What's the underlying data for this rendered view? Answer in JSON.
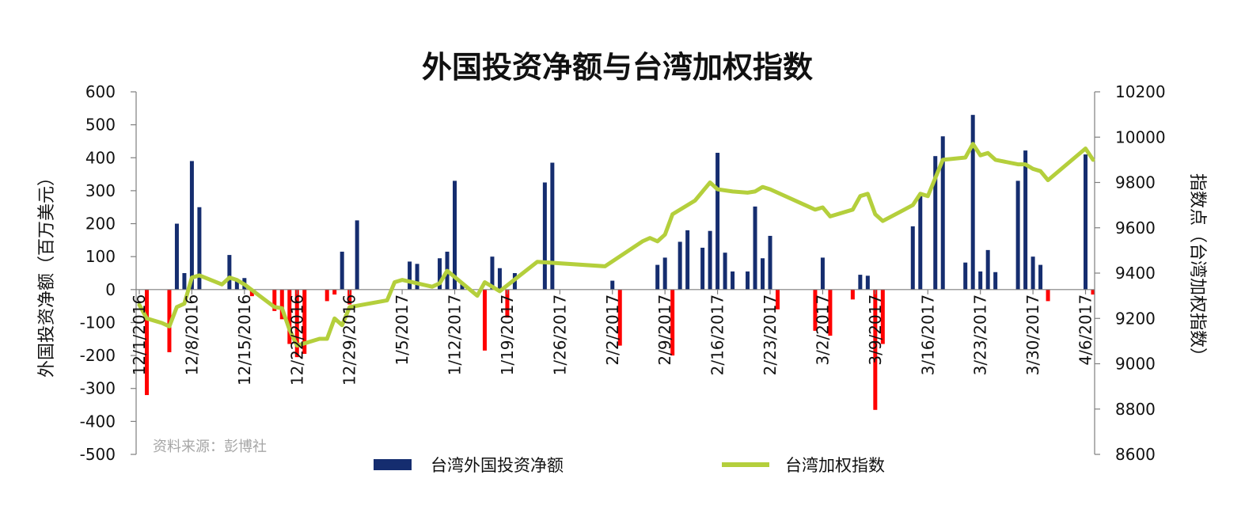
{
  "chart_data": {
    "type": "bar+line",
    "title": "外国投资净额与台湾加权指数",
    "source_note": "资料来源：彭博社",
    "ylabel_left": "外国投资净额（百万美元）",
    "ylabel_right": "指数点（台湾加权指数）",
    "ylim_left": [
      -500,
      600
    ],
    "ylim_right": [
      8600,
      10200
    ],
    "yticks_left": [
      600,
      500,
      400,
      300,
      200,
      100,
      0,
      -100,
      -200,
      -300,
      -400,
      -500
    ],
    "yticks_right": [
      10200,
      10000,
      9800,
      9600,
      9400,
      9200,
      9000,
      8800,
      8600
    ],
    "x_range_days": [
      0,
      127
    ],
    "x_tick_days": [
      0,
      7,
      14,
      21,
      28,
      35,
      42,
      49,
      56,
      63,
      70,
      77,
      84,
      91,
      98,
      105,
      112,
      119,
      126
    ],
    "x_tick_labels": [
      "12/1/2016",
      "12/8/2016",
      "12/15/2016",
      "12/22/2016",
      "12/29/2016",
      "1/5/2017",
      "1/12/2017",
      "1/19/2017",
      "1/26/2017",
      "2/2/2017",
      "2/9/2017",
      "2/16/2017",
      "2/23/2017",
      "3/2/2017",
      "3/9/2017",
      "3/16/2017",
      "3/23/2017",
      "3/30/2017",
      "4/6/2017"
    ],
    "colors": {
      "positive_bar": "#152d6f",
      "negative_bar": "#ff0000",
      "line": "#b4cf3c"
    },
    "series": [
      {
        "name": "台湾外国投资净额",
        "axis": "left",
        "kind": "bar",
        "points": [
          [
            1,
            -320
          ],
          [
            4,
            -190
          ],
          [
            5,
            200
          ],
          [
            6,
            50
          ],
          [
            7,
            390
          ],
          [
            8,
            250
          ],
          [
            12,
            105
          ],
          [
            13,
            30
          ],
          [
            14,
            35
          ],
          [
            15,
            -20
          ],
          [
            18,
            -65
          ],
          [
            19,
            -90
          ],
          [
            20,
            -165
          ],
          [
            21,
            -205
          ],
          [
            22,
            -195
          ],
          [
            25,
            -35
          ],
          [
            26,
            -15
          ],
          [
            27,
            115
          ],
          [
            28,
            -45
          ],
          [
            29,
            210
          ],
          [
            36,
            85
          ],
          [
            37,
            78
          ],
          [
            40,
            95
          ],
          [
            41,
            115
          ],
          [
            42,
            330
          ],
          [
            43,
            18
          ],
          [
            46,
            -185
          ],
          [
            47,
            100
          ],
          [
            48,
            65
          ],
          [
            49,
            -85
          ],
          [
            50,
            50
          ],
          [
            54,
            325
          ],
          [
            55,
            385
          ],
          [
            63,
            27
          ],
          [
            64,
            -170
          ],
          [
            69,
            75
          ],
          [
            70,
            97
          ],
          [
            71,
            -200
          ],
          [
            72,
            145
          ],
          [
            73,
            180
          ],
          [
            75,
            127
          ],
          [
            76,
            178
          ],
          [
            77,
            415
          ],
          [
            78,
            112
          ],
          [
            79,
            55
          ],
          [
            81,
            55
          ],
          [
            82,
            252
          ],
          [
            83,
            95
          ],
          [
            84,
            163
          ],
          [
            85,
            -60
          ],
          [
            90,
            -125
          ],
          [
            91,
            97
          ],
          [
            92,
            -140
          ],
          [
            95,
            -30
          ],
          [
            96,
            45
          ],
          [
            97,
            42
          ],
          [
            98,
            -365
          ],
          [
            99,
            -165
          ],
          [
            103,
            192
          ],
          [
            104,
            290
          ],
          [
            106,
            405
          ],
          [
            107,
            465
          ],
          [
            110,
            82
          ],
          [
            111,
            530
          ],
          [
            112,
            55
          ],
          [
            113,
            120
          ],
          [
            114,
            53
          ],
          [
            117,
            330
          ],
          [
            118,
            422
          ],
          [
            119,
            100
          ],
          [
            120,
            75
          ],
          [
            121,
            -35
          ],
          [
            126,
            410
          ],
          [
            127,
            -15
          ]
        ]
      },
      {
        "name": "台湾加权指数",
        "axis": "right",
        "kind": "line",
        "points": [
          [
            0,
            9260
          ],
          [
            1,
            9200
          ],
          [
            3,
            9180
          ],
          [
            4,
            9165
          ],
          [
            5,
            9250
          ],
          [
            6,
            9265
          ],
          [
            7,
            9380
          ],
          [
            8,
            9390
          ],
          [
            11,
            9350
          ],
          [
            12,
            9380
          ],
          [
            13,
            9370
          ],
          [
            14,
            9350
          ],
          [
            18,
            9250
          ],
          [
            19,
            9245
          ],
          [
            20,
            9150
          ],
          [
            21,
            9080
          ],
          [
            24,
            9110
          ],
          [
            25,
            9110
          ],
          [
            26,
            9200
          ],
          [
            27,
            9170
          ],
          [
            28,
            9250
          ],
          [
            33,
            9280
          ],
          [
            34,
            9360
          ],
          [
            35,
            9370
          ],
          [
            39,
            9340
          ],
          [
            40,
            9355
          ],
          [
            41,
            9410
          ],
          [
            45,
            9300
          ],
          [
            46,
            9360
          ],
          [
            48,
            9320
          ],
          [
            53,
            9450
          ],
          [
            62,
            9430
          ],
          [
            67,
            9540
          ],
          [
            68,
            9555
          ],
          [
            69,
            9540
          ],
          [
            70,
            9570
          ],
          [
            71,
            9660
          ],
          [
            74,
            9720
          ],
          [
            76,
            9800
          ],
          [
            77,
            9770
          ],
          [
            79,
            9760
          ],
          [
            81,
            9755
          ],
          [
            82,
            9760
          ],
          [
            83,
            9780
          ],
          [
            84,
            9770
          ],
          [
            90,
            9680
          ],
          [
            91,
            9690
          ],
          [
            92,
            9650
          ],
          [
            95,
            9680
          ],
          [
            96,
            9740
          ],
          [
            97,
            9750
          ],
          [
            98,
            9660
          ],
          [
            99,
            9630
          ],
          [
            103,
            9700
          ],
          [
            104,
            9750
          ],
          [
            105,
            9740
          ],
          [
            107,
            9900
          ],
          [
            110,
            9910
          ],
          [
            111,
            9970
          ],
          [
            112,
            9920
          ],
          [
            113,
            9930
          ],
          [
            114,
            9900
          ],
          [
            117,
            9880
          ],
          [
            118,
            9880
          ],
          [
            119,
            9860
          ],
          [
            120,
            9850
          ],
          [
            121,
            9810
          ],
          [
            126,
            9950
          ],
          [
            127,
            9900
          ]
        ]
      }
    ]
  }
}
